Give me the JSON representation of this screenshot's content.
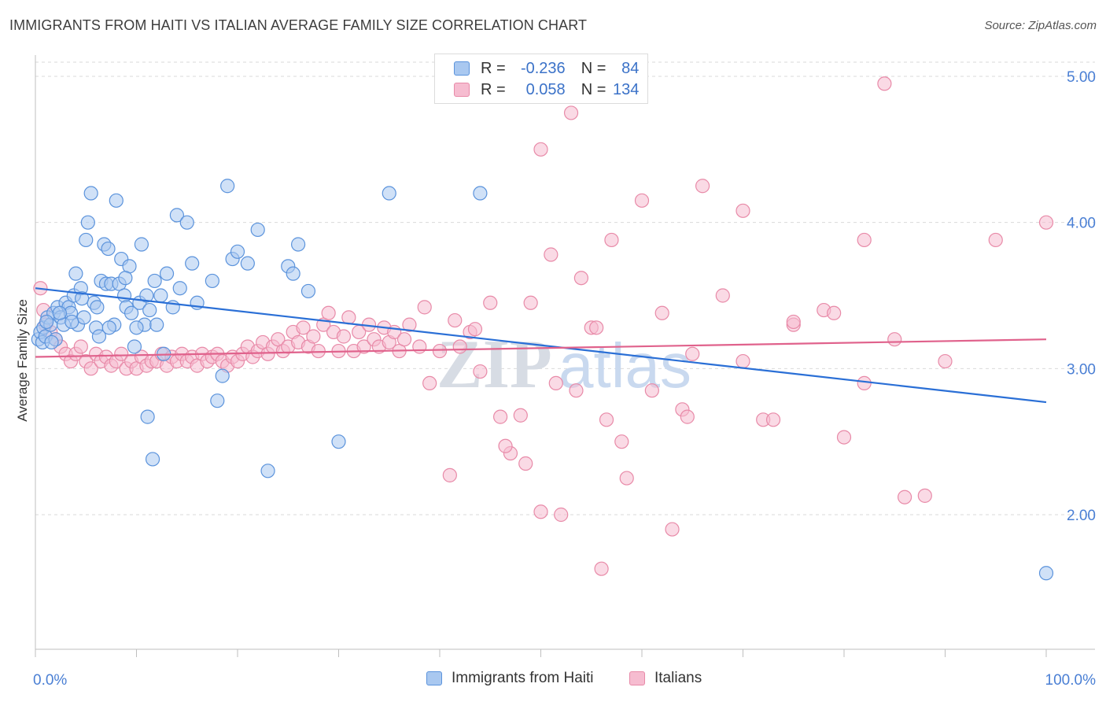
{
  "header": {
    "title": "IMMIGRANTS FROM HAITI VS ITALIAN AVERAGE FAMILY SIZE CORRELATION CHART",
    "source": "Source: ZipAtlas.com"
  },
  "watermark": {
    "zip": "ZIP",
    "atlas": "atlas"
  },
  "colors": {
    "blue_fill": "#a9c8f0",
    "blue_stroke": "#5b93dc",
    "blue_line": "#2a6fd6",
    "pink_fill": "#f6bcd0",
    "pink_stroke": "#e88aa8",
    "pink_line": "#e0628c",
    "grid": "#d9d9d9",
    "tick_text": "#4a7fd4"
  },
  "legend": {
    "r_label": "R =",
    "n_label": "N =",
    "rows": [
      {
        "r": "-0.236",
        "n": "84"
      },
      {
        "r": "0.058",
        "n": "134"
      }
    ]
  },
  "bottom_legend": [
    "Immigrants from Haiti",
    "Italians"
  ],
  "chart_data": {
    "type": "scatter",
    "title": "IMMIGRANTS FROM HAITI VS ITALIAN AVERAGE FAMILY SIZE CORRELATION CHART",
    "xlabel": "",
    "ylabel": "Average Family Size",
    "xlim": [
      0,
      100
    ],
    "ylim": [
      1.0,
      5.2
    ],
    "x_tick_labels": [
      "0.0%",
      "100.0%"
    ],
    "y_ticks": [
      2.0,
      3.0,
      4.0,
      5.0
    ],
    "y_tick_labels": [
      "2.00",
      "3.00",
      "4.00",
      "5.00"
    ],
    "grid": true,
    "series": [
      {
        "name": "Immigrants from Haiti",
        "r": -0.236,
        "n": 84,
        "trend": {
          "x": [
            0,
            100
          ],
          "y": [
            3.55,
            2.77
          ]
        },
        "points": [
          [
            0.3,
            3.2
          ],
          [
            0.5,
            3.25
          ],
          [
            0.7,
            3.18
          ],
          [
            0.8,
            3.28
          ],
          [
            1.0,
            3.22
          ],
          [
            1.2,
            3.35
          ],
          [
            1.5,
            3.3
          ],
          [
            1.8,
            3.38
          ],
          [
            2.0,
            3.2
          ],
          [
            2.2,
            3.42
          ],
          [
            2.5,
            3.35
          ],
          [
            2.8,
            3.3
          ],
          [
            3.0,
            3.45
          ],
          [
            3.3,
            3.42
          ],
          [
            3.5,
            3.38
          ],
          [
            3.8,
            3.5
          ],
          [
            4.0,
            3.65
          ],
          [
            4.2,
            3.3
          ],
          [
            4.5,
            3.55
          ],
          [
            4.8,
            3.35
          ],
          [
            5.0,
            3.88
          ],
          [
            5.2,
            4.0
          ],
          [
            5.5,
            4.2
          ],
          [
            5.8,
            3.45
          ],
          [
            6.0,
            3.28
          ],
          [
            6.3,
            3.22
          ],
          [
            6.5,
            3.6
          ],
          [
            6.8,
            3.85
          ],
          [
            7.0,
            3.58
          ],
          [
            7.2,
            3.82
          ],
          [
            7.5,
            3.58
          ],
          [
            7.8,
            3.3
          ],
          [
            8.0,
            4.15
          ],
          [
            8.3,
            3.58
          ],
          [
            8.5,
            3.75
          ],
          [
            8.8,
            3.5
          ],
          [
            9.0,
            3.42
          ],
          [
            9.3,
            3.7
          ],
          [
            9.5,
            3.38
          ],
          [
            9.8,
            3.15
          ],
          [
            10.3,
            3.45
          ],
          [
            10.5,
            3.85
          ],
          [
            10.8,
            3.3
          ],
          [
            11.0,
            3.5
          ],
          [
            11.3,
            3.4
          ],
          [
            11.6,
            2.38
          ],
          [
            11.8,
            3.6
          ],
          [
            12.0,
            3.3
          ],
          [
            12.4,
            3.5
          ],
          [
            12.7,
            3.1
          ],
          [
            13.0,
            3.65
          ],
          [
            13.6,
            3.42
          ],
          [
            14.0,
            4.05
          ],
          [
            14.3,
            3.55
          ],
          [
            15.0,
            4.0
          ],
          [
            16.0,
            3.45
          ],
          [
            17.5,
            3.6
          ],
          [
            18.0,
            2.78
          ],
          [
            18.5,
            2.95
          ],
          [
            19.5,
            3.75
          ],
          [
            20.0,
            3.8
          ],
          [
            21.0,
            3.72
          ],
          [
            22.0,
            3.95
          ],
          [
            23.0,
            2.3
          ],
          [
            25.0,
            3.7
          ],
          [
            26.0,
            3.85
          ],
          [
            27.0,
            3.53
          ],
          [
            30.0,
            2.5
          ],
          [
            35.0,
            4.2
          ],
          [
            44.0,
            4.2
          ],
          [
            1.1,
            3.32
          ],
          [
            1.6,
            3.18
          ],
          [
            2.4,
            3.38
          ],
          [
            3.6,
            3.32
          ],
          [
            4.6,
            3.48
          ],
          [
            6.1,
            3.42
          ],
          [
            7.3,
            3.28
          ],
          [
            8.9,
            3.62
          ],
          [
            10.0,
            3.28
          ],
          [
            11.1,
            2.67
          ],
          [
            15.5,
            3.72
          ],
          [
            19.0,
            4.25
          ],
          [
            25.5,
            3.65
          ],
          [
            100.0,
            1.6
          ]
        ]
      },
      {
        "name": "Italians",
        "r": 0.058,
        "n": 134,
        "trend": {
          "x": [
            0,
            100
          ],
          "y": [
            3.08,
            3.2
          ]
        },
        "points": [
          [
            0.5,
            3.55
          ],
          [
            0.8,
            3.4
          ],
          [
            1.0,
            3.3
          ],
          [
            1.5,
            3.25
          ],
          [
            2.0,
            3.2
          ],
          [
            2.5,
            3.15
          ],
          [
            3.0,
            3.1
          ],
          [
            3.5,
            3.05
          ],
          [
            4.0,
            3.1
          ],
          [
            4.5,
            3.15
          ],
          [
            5.0,
            3.05
          ],
          [
            5.5,
            3.0
          ],
          [
            6.0,
            3.1
          ],
          [
            6.5,
            3.05
          ],
          [
            7.0,
            3.08
          ],
          [
            7.5,
            3.02
          ],
          [
            8.0,
            3.05
          ],
          [
            8.5,
            3.1
          ],
          [
            9.0,
            3.0
          ],
          [
            9.5,
            3.05
          ],
          [
            10.0,
            3.0
          ],
          [
            10.5,
            3.08
          ],
          [
            11.0,
            3.02
          ],
          [
            11.5,
            3.05
          ],
          [
            12.0,
            3.05
          ],
          [
            12.5,
            3.1
          ],
          [
            13.0,
            3.02
          ],
          [
            13.5,
            3.08
          ],
          [
            14.0,
            3.05
          ],
          [
            14.5,
            3.1
          ],
          [
            15.0,
            3.05
          ],
          [
            15.5,
            3.08
          ],
          [
            16.0,
            3.02
          ],
          [
            16.5,
            3.1
          ],
          [
            17.0,
            3.05
          ],
          [
            17.5,
            3.08
          ],
          [
            18.0,
            3.1
          ],
          [
            18.5,
            3.05
          ],
          [
            19.0,
            3.02
          ],
          [
            19.5,
            3.08
          ],
          [
            20.0,
            3.05
          ],
          [
            20.5,
            3.1
          ],
          [
            21.0,
            3.15
          ],
          [
            21.5,
            3.08
          ],
          [
            22.0,
            3.12
          ],
          [
            22.5,
            3.18
          ],
          [
            23.0,
            3.1
          ],
          [
            23.5,
            3.15
          ],
          [
            24.0,
            3.2
          ],
          [
            24.5,
            3.12
          ],
          [
            25.0,
            3.15
          ],
          [
            25.5,
            3.25
          ],
          [
            26.0,
            3.18
          ],
          [
            26.5,
            3.28
          ],
          [
            27.0,
            3.15
          ],
          [
            27.5,
            3.22
          ],
          [
            28.0,
            3.12
          ],
          [
            28.5,
            3.3
          ],
          [
            29.0,
            3.38
          ],
          [
            29.5,
            3.25
          ],
          [
            30.0,
            3.12
          ],
          [
            30.5,
            3.22
          ],
          [
            31.0,
            3.35
          ],
          [
            31.5,
            3.12
          ],
          [
            32.0,
            3.25
          ],
          [
            32.5,
            3.15
          ],
          [
            33.0,
            3.3
          ],
          [
            33.5,
            3.2
          ],
          [
            34.0,
            3.15
          ],
          [
            34.5,
            3.28
          ],
          [
            35.0,
            3.18
          ],
          [
            35.5,
            3.25
          ],
          [
            36.0,
            3.12
          ],
          [
            36.5,
            3.2
          ],
          [
            37.0,
            3.3
          ],
          [
            38.0,
            3.15
          ],
          [
            39.0,
            2.9
          ],
          [
            40.0,
            3.12
          ],
          [
            41.0,
            2.27
          ],
          [
            42.0,
            3.15
          ],
          [
            43.0,
            3.25
          ],
          [
            44.0,
            2.98
          ],
          [
            45.0,
            3.45
          ],
          [
            46.0,
            2.67
          ],
          [
            47.0,
            2.42
          ],
          [
            48.0,
            2.68
          ],
          [
            49.0,
            3.45
          ],
          [
            50.0,
            2.02
          ],
          [
            51.0,
            3.78
          ],
          [
            52.0,
            2.0
          ],
          [
            53.0,
            4.75
          ],
          [
            54.0,
            3.62
          ],
          [
            55.0,
            3.28
          ],
          [
            56.0,
            1.63
          ],
          [
            57.0,
            3.88
          ],
          [
            58.0,
            2.5
          ],
          [
            60.0,
            4.15
          ],
          [
            62.0,
            3.38
          ],
          [
            63.0,
            1.9
          ],
          [
            64.0,
            2.72
          ],
          [
            66.0,
            4.25
          ],
          [
            68.0,
            3.5
          ],
          [
            70.0,
            4.08
          ],
          [
            72.0,
            2.65
          ],
          [
            75.0,
            3.3
          ],
          [
            78.0,
            3.4
          ],
          [
            80.0,
            2.53
          ],
          [
            82.0,
            3.88
          ],
          [
            84.0,
            4.95
          ],
          [
            86.0,
            2.12
          ],
          [
            88.0,
            2.13
          ],
          [
            90.0,
            3.05
          ],
          [
            95.0,
            3.88
          ],
          [
            100.0,
            4.0
          ],
          [
            50.0,
            4.5
          ],
          [
            56.5,
            2.65
          ],
          [
            58.5,
            2.25
          ],
          [
            64.5,
            2.67
          ],
          [
            73.0,
            2.65
          ],
          [
            75.0,
            3.32
          ],
          [
            38.5,
            3.42
          ],
          [
            41.5,
            3.33
          ],
          [
            43.5,
            3.27
          ],
          [
            46.5,
            2.47
          ],
          [
            48.5,
            2.35
          ],
          [
            51.5,
            2.9
          ],
          [
            53.5,
            2.85
          ],
          [
            55.5,
            3.28
          ],
          [
            61.0,
            2.85
          ],
          [
            65.0,
            3.1
          ],
          [
            70.0,
            3.05
          ],
          [
            79.0,
            3.38
          ],
          [
            82.0,
            2.9
          ],
          [
            85.0,
            3.2
          ]
        ]
      }
    ]
  }
}
